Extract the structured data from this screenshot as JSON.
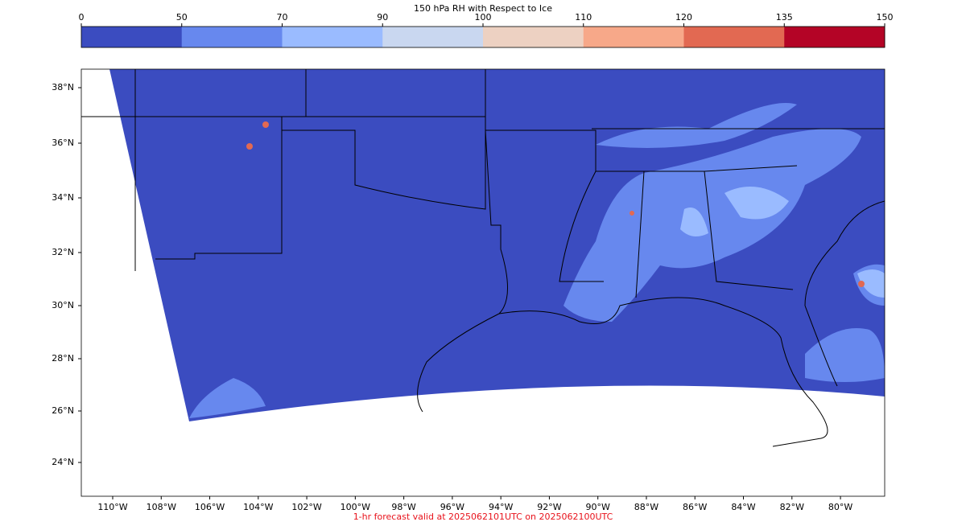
{
  "colorbar": {
    "title": "150 hPa RH with Respect to Ice",
    "ticks": [
      "0",
      "50",
      "70",
      "90",
      "100",
      "110",
      "120",
      "135",
      "150"
    ],
    "colors": [
      "#3b4cc0",
      "#6788ee",
      "#9abbff",
      "#c9d7f0",
      "#edd1c2",
      "#f7a889",
      "#e26952",
      "#b40426"
    ]
  },
  "map": {
    "latitude_labels": [
      "38°N",
      "36°N",
      "34°N",
      "32°N",
      "30°N",
      "28°N",
      "26°N",
      "24°N"
    ],
    "longitude_labels": [
      "110°W",
      "108°W",
      "106°W",
      "104°W",
      "102°W",
      "100°W",
      "98°W",
      "96°W",
      "94°W",
      "92°W",
      "90°W",
      "88°W",
      "86°W",
      "84°W",
      "82°W",
      "80°W"
    ]
  },
  "footer": "1-hr forecast valid at 2025062101UTC on 2025062100UTC"
}
